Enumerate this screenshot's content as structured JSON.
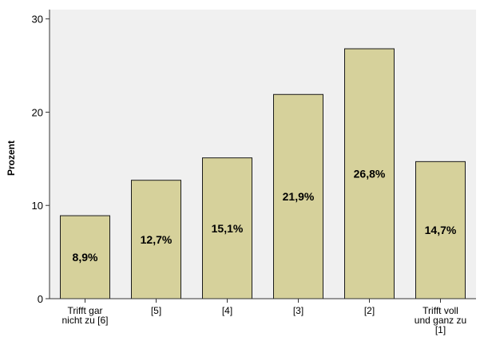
{
  "chart_data": {
    "type": "bar",
    "xlabel": "",
    "ylabel": "Prozent",
    "ylim": [
      0,
      31
    ],
    "yticks": [
      0,
      10,
      20,
      30
    ],
    "categories": [
      [
        "Trifft gar",
        "nicht zu [6]"
      ],
      [
        "[5]"
      ],
      [
        "[4]"
      ],
      [
        "[3]"
      ],
      [
        "[2]"
      ],
      [
        "Trifft voll",
        "und ganz zu",
        "[1]"
      ]
    ],
    "values": [
      8.9,
      12.7,
      15.1,
      21.9,
      26.8,
      14.7
    ],
    "data_labels": [
      "8,9%",
      "12,7%",
      "15,1%",
      "21,9%",
      "26,8%",
      "14,7%"
    ],
    "grid": false,
    "colors": {
      "plot_background": "#f0f0f0",
      "bar_fill": "#d6d19b",
      "bar_stroke": "#1a1a1a",
      "axis": "#333333"
    }
  }
}
